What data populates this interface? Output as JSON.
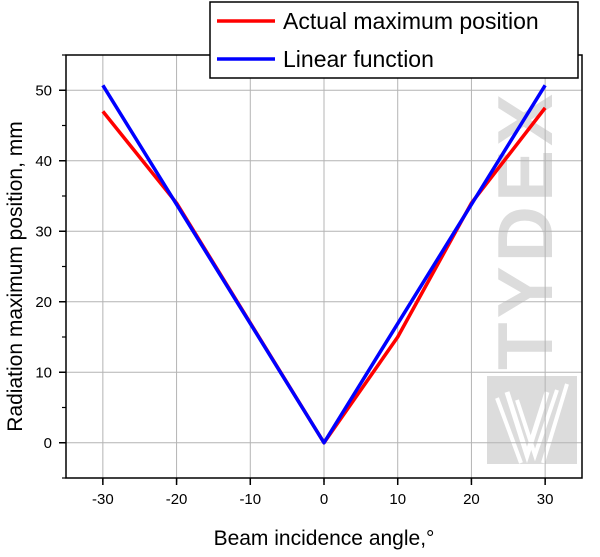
{
  "chart_data": {
    "type": "line",
    "title": "",
    "xlabel": "Beam incidence angle,°",
    "ylabel": "Radiation maximum position, mm",
    "xlim": [
      -35,
      35
    ],
    "ylim": [
      -5,
      55
    ],
    "x_ticks": [
      -30,
      -20,
      -10,
      0,
      10,
      20,
      30
    ],
    "y_ticks": [
      0,
      10,
      20,
      30,
      40,
      50
    ],
    "grid": true,
    "legend_position": "top-right",
    "series": [
      {
        "name": "Actual maximum position",
        "color": "#ff0000",
        "x": [
          -30,
          -20,
          -10,
          0,
          10,
          20,
          30
        ],
        "y": [
          47,
          34,
          17,
          0,
          15,
          34,
          47.5
        ]
      },
      {
        "name": "Linear function",
        "color": "#0000ff",
        "x": [
          -30,
          0,
          30
        ],
        "y": [
          50.7,
          0,
          50.7
        ]
      }
    ]
  },
  "watermark": {
    "text": "TYDEX",
    "color": "#d9d9d9"
  }
}
